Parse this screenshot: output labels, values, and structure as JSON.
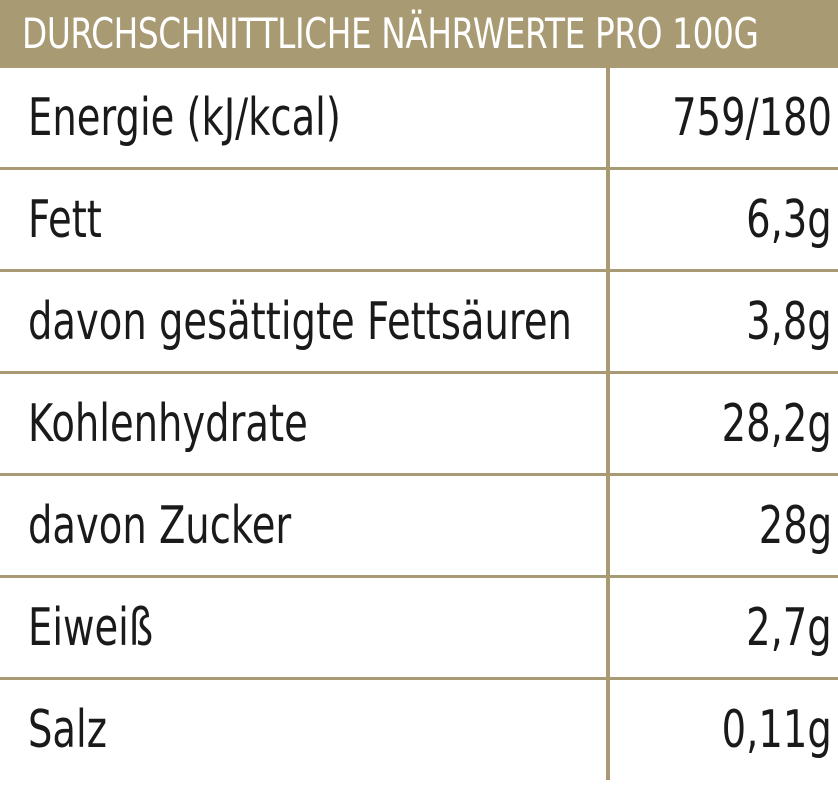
{
  "header": {
    "title": "DURCHSCHNITTLICHE NÄHRWERTE PRO 100G"
  },
  "rows": [
    {
      "label": "Energie (kJ/kcal)",
      "value": "759/180"
    },
    {
      "label": "Fett",
      "value": "6,3g"
    },
    {
      "label": "davon gesättigte Fettsäuren",
      "value": "3,8g"
    },
    {
      "label": "Kohlenhydrate",
      "value": "28,2g"
    },
    {
      "label": "davon Zucker",
      "value": "28g"
    },
    {
      "label": "Eiweiß",
      "value": "2,7g"
    },
    {
      "label": "Salz",
      "value": "0,11g"
    }
  ],
  "colors": {
    "accent": "#a89a73",
    "text": "#1a1a1a",
    "background": "#ffffff"
  }
}
